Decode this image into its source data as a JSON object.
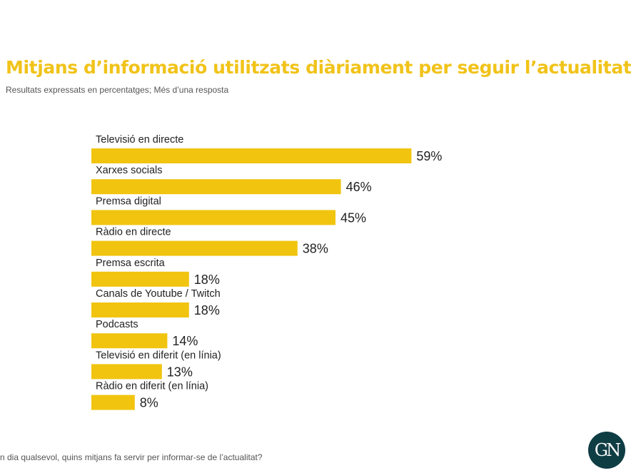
{
  "title": "Mitjans d’informació utilitzats diàriament per seguir l’actualitat",
  "subtitle": "Resultats expressats en percentatges; Més d’una resposta",
  "footnote": "n dia qualsevol, quins mitjans fa servir per informar-se de l’actualitat?",
  "logo": {
    "text": "GN",
    "background": "#0f3d44"
  },
  "colors": {
    "accent": "#f1c319",
    "bar": "#f1c40f",
    "text": "#222222"
  },
  "chart_data": {
    "type": "bar",
    "orientation": "horizontal",
    "title": "Mitjans d’informació utilitzats diàriament per seguir l’actualitat",
    "subtitle": "Resultats expressats en percentatges; Més d’una resposta",
    "categories": [
      "Televisió en directe",
      "Xarxes socials",
      "Premsa digital",
      "Ràdio en directe",
      "Premsa escrita",
      "Canals de Youtube / Twitch",
      "Podcasts",
      "Televisió en diferit (en línia)",
      "Ràdio en diferit (en línia)"
    ],
    "values": [
      59,
      46,
      45,
      38,
      18,
      18,
      14,
      13,
      8
    ],
    "value_labels": [
      "59%",
      "46%",
      "45%",
      "38%",
      "18%",
      "18%",
      "14%",
      "13%",
      "8%"
    ],
    "xlim": [
      0,
      100
    ],
    "grid": false,
    "legend": "none"
  }
}
